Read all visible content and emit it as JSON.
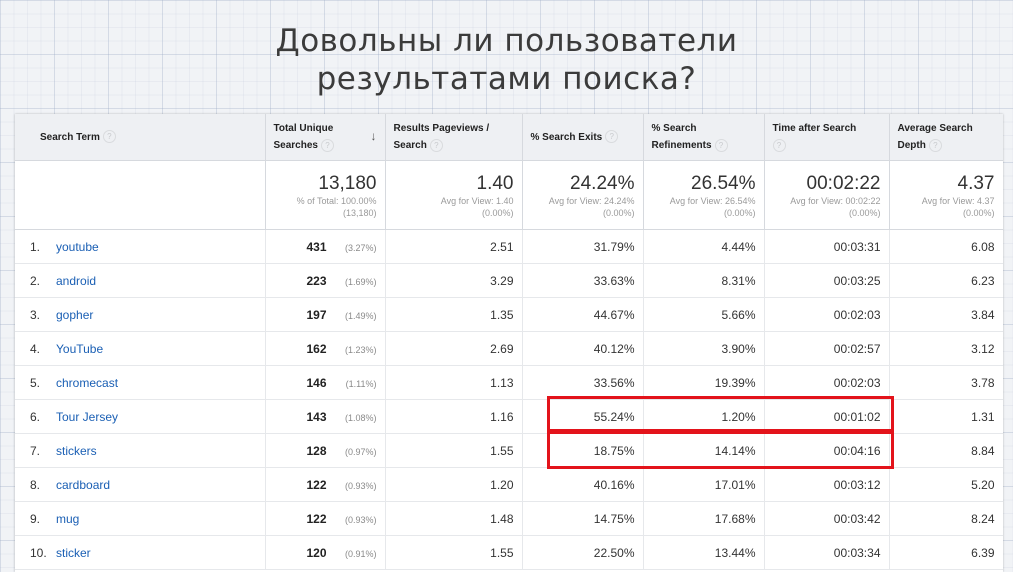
{
  "slide": {
    "title_line1": "Довольны ли пользователи",
    "title_line2": "результатами поиска?"
  },
  "table": {
    "headers": {
      "search_term": "Search Term",
      "total_unique_l1": "Total Unique",
      "total_unique_l2": "Searches",
      "pageviews_l1": "Results Pageviews /",
      "pageviews_l2": "Search",
      "exits": "% Search Exits",
      "refinements_l1": "% Search",
      "refinements_l2": "Refinements",
      "time": "Time after Search",
      "depth_l1": "Average Search",
      "depth_l2": "Depth",
      "help_glyph": "?",
      "sort_glyph": "↓"
    },
    "summary": {
      "tus": {
        "big": "13,180",
        "l1": "% of Total: 100.00%",
        "l2": "(13,180)"
      },
      "pageviews": {
        "big": "1.40",
        "l1": "Avg for View: 1.40",
        "l2": "(0.00%)"
      },
      "exits": {
        "big": "24.24%",
        "l1": "Avg for View: 24.24%",
        "l2": "(0.00%)"
      },
      "refinements": {
        "big": "26.54%",
        "l1": "Avg for View: 26.54%",
        "l2": "(0.00%)"
      },
      "time": {
        "big": "00:02:22",
        "l1": "Avg for View: 00:02:22",
        "l2": "(0.00%)"
      },
      "depth": {
        "big": "4.37",
        "l1": "Avg for View: 4.37",
        "l2": "(0.00%)"
      }
    },
    "rows": [
      {
        "idx": "1.",
        "term": "youtube",
        "tus": "431",
        "tus_pct": "(3.27%)",
        "pageviews": "2.51",
        "exits": "31.79%",
        "refinements": "4.44%",
        "time": "00:03:31",
        "depth": "6.08"
      },
      {
        "idx": "2.",
        "term": "android",
        "tus": "223",
        "tus_pct": "(1.69%)",
        "pageviews": "3.29",
        "exits": "33.63%",
        "refinements": "8.31%",
        "time": "00:03:25",
        "depth": "6.23"
      },
      {
        "idx": "3.",
        "term": "gopher",
        "tus": "197",
        "tus_pct": "(1.49%)",
        "pageviews": "1.35",
        "exits": "44.67%",
        "refinements": "5.66%",
        "time": "00:02:03",
        "depth": "3.84"
      },
      {
        "idx": "4.",
        "term": "YouTube",
        "tus": "162",
        "tus_pct": "(1.23%)",
        "pageviews": "2.69",
        "exits": "40.12%",
        "refinements": "3.90%",
        "time": "00:02:57",
        "depth": "3.12"
      },
      {
        "idx": "5.",
        "term": "chromecast",
        "tus": "146",
        "tus_pct": "(1.11%)",
        "pageviews": "1.13",
        "exits": "33.56%",
        "refinements": "19.39%",
        "time": "00:02:03",
        "depth": "3.78"
      },
      {
        "idx": "6.",
        "term": "Tour Jersey",
        "tus": "143",
        "tus_pct": "(1.08%)",
        "pageviews": "1.16",
        "exits": "55.24%",
        "refinements": "1.20%",
        "time": "00:01:02",
        "depth": "1.31"
      },
      {
        "idx": "7.",
        "term": "stickers",
        "tus": "128",
        "tus_pct": "(0.97%)",
        "pageviews": "1.55",
        "exits": "18.75%",
        "refinements": "14.14%",
        "time": "00:04:16",
        "depth": "8.84"
      },
      {
        "idx": "8.",
        "term": "cardboard",
        "tus": "122",
        "tus_pct": "(0.93%)",
        "pageviews": "1.20",
        "exits": "40.16%",
        "refinements": "17.01%",
        "time": "00:03:12",
        "depth": "5.20"
      },
      {
        "idx": "9.",
        "term": "mug",
        "tus": "122",
        "tus_pct": "(0.93%)",
        "pageviews": "1.48",
        "exits": "14.75%",
        "refinements": "17.68%",
        "time": "00:03:42",
        "depth": "8.24"
      },
      {
        "idx": "10.",
        "term": "sticker",
        "tus": "120",
        "tus_pct": "(0.91%)",
        "pageviews": "1.55",
        "exits": "22.50%",
        "refinements": "13.44%",
        "time": "00:03:34",
        "depth": "6.39"
      }
    ]
  },
  "highlight_color": "#e3131b",
  "link_color": "#1a5fb4"
}
